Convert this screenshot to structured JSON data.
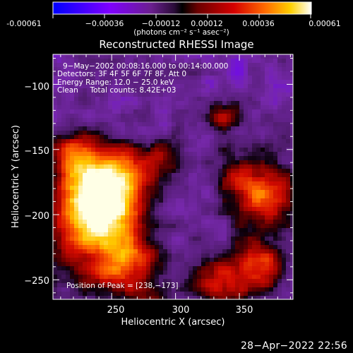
{
  "chart_data": {
    "type": "heatmap",
    "title": "Reconstructed RHESSI Image",
    "xlabel": "Heliocentric X (arcsec)",
    "ylabel": "Heliocentric Y (arcsec)",
    "xlim": [
      204,
      392
    ],
    "ylim": [
      -265,
      -77
    ],
    "x_ticks": [
      250,
      300,
      350
    ],
    "y_ticks": [
      -100,
      -150,
      -200,
      -250
    ],
    "x_tick_labels": [
      "250",
      "300",
      "350"
    ],
    "y_tick_labels": [
      "−100",
      "−150",
      "−200",
      "−250"
    ],
    "colorbar": {
      "range": [
        -0.00061,
        0.00061
      ],
      "ticks": [
        "-0.00061",
        "−0.00036",
        "−0.00012",
        "0.00012",
        "0.00036",
        "0.00061"
      ],
      "unit_label": "(photons cm⁻² s⁻¹ asec⁻²)",
      "colors": [
        "#0000ff",
        "#7f00ff",
        "#7a1f9a",
        "#5a1d6f",
        "#000000",
        "#6b0000",
        "#d40000",
        "#ff6a00",
        "#ffc800",
        "#ffffff"
      ]
    },
    "annotations": [
      "9−May−2002 00:08:16.000 to 00:14:00.000",
      "Detectors: 3F 4F 5F 6F 7F 8F, Att 0",
      "Energy Range: 12.0 − 25.0 keV",
      "Clean     Total counts: 8.42E+03"
    ],
    "peak_label": "Position of Peak = [238,−173]",
    "peak_position": [
      238,
      -173
    ]
  },
  "footer": {
    "timestamp": "28−Apr−2022 22:56"
  }
}
